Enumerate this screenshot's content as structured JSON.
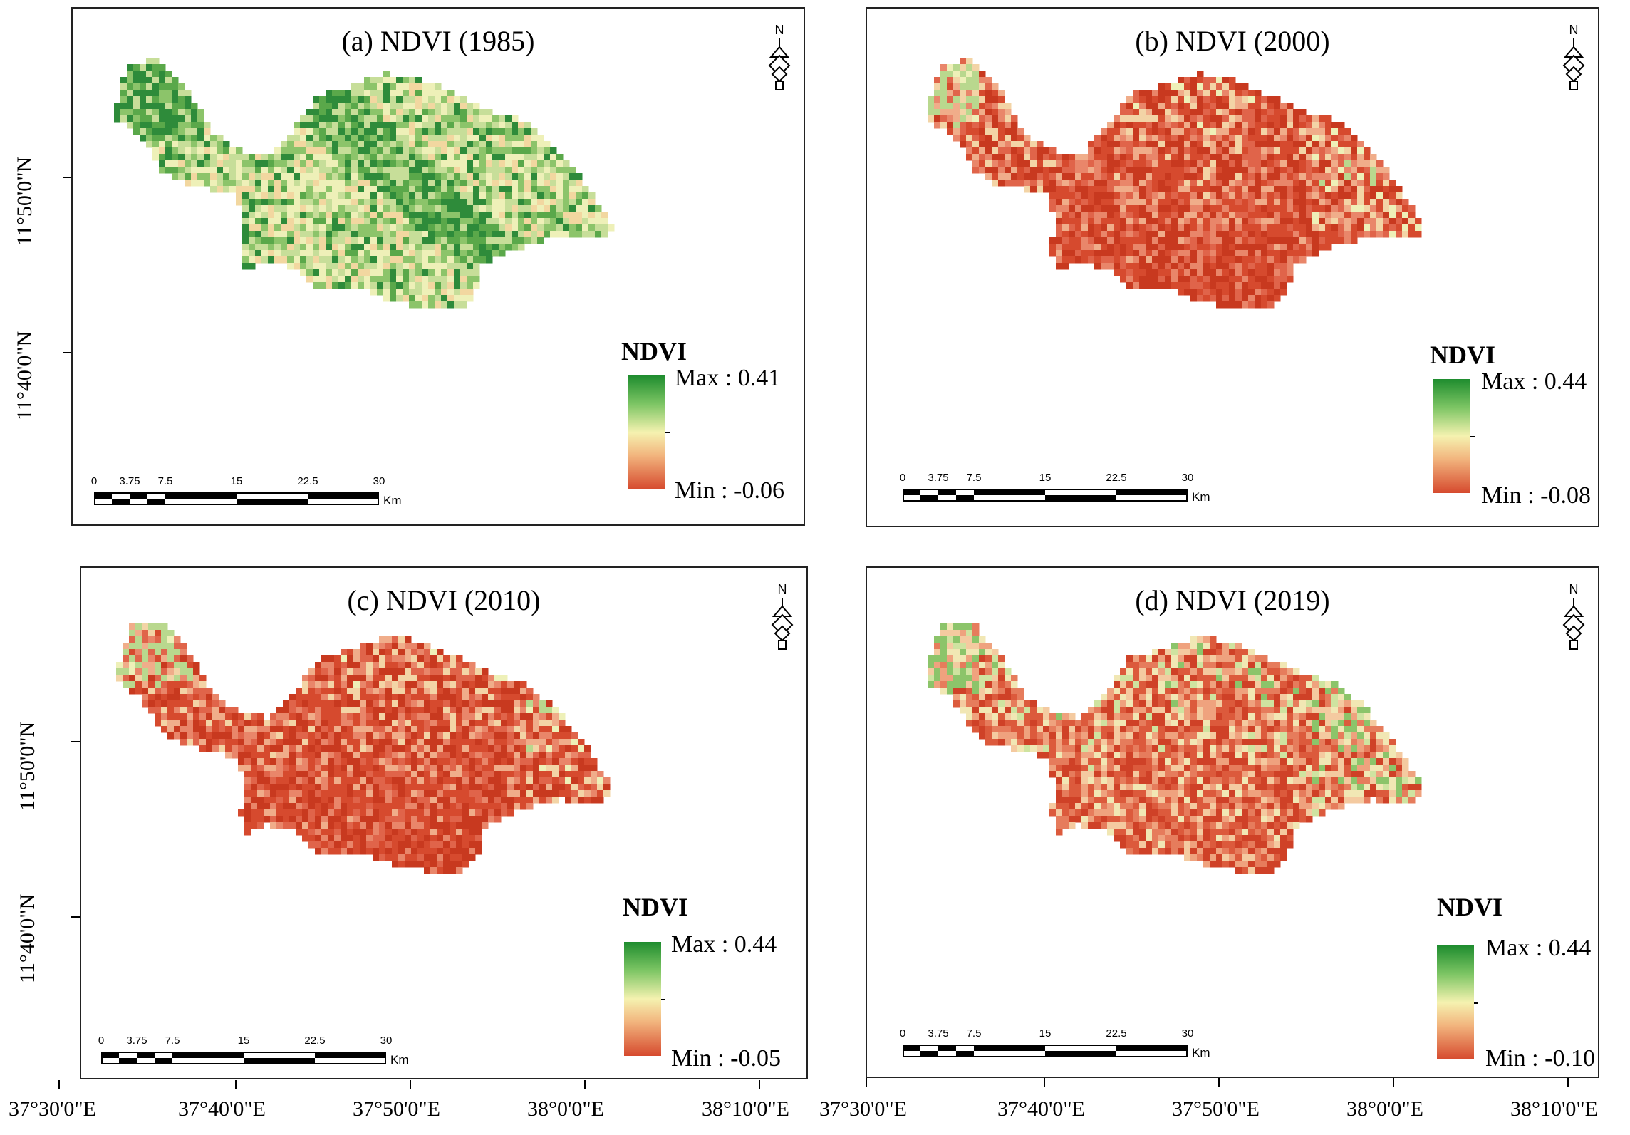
{
  "figure": {
    "panels": [
      {
        "title": "(a) NDVI (1985)",
        "legend_title": "NDVI",
        "max_label": "Max : 0.41",
        "min_label": "Min : -0.06",
        "max": 0.41,
        "min": -0.06,
        "dominant": "green"
      },
      {
        "title": "(b) NDVI (2000)",
        "legend_title": "NDVI",
        "max_label": "Max : 0.44",
        "min_label": "Min : -0.08",
        "max": 0.44,
        "min": -0.08,
        "dominant": "red"
      },
      {
        "title": "(c) NDVI (2010)",
        "legend_title": "NDVI",
        "max_label": "Max : 0.44",
        "min_label": "Min : -0.05",
        "max": 0.44,
        "min": -0.05,
        "dominant": "red"
      },
      {
        "title": "(d) NDVI (2019)",
        "legend_title": "NDVI",
        "max_label": "Max : 0.44",
        "min_label": "Min : -0.10",
        "max": 0.44,
        "min": -0.1,
        "dominant": "mixed"
      }
    ],
    "scale_bar": {
      "labels": [
        "0",
        "3.75",
        "7.5",
        "15",
        "22.5",
        "30"
      ],
      "unit": "Km"
    },
    "north_arrow": "N",
    "lat_labels": [
      "11°50'0\"N",
      "11°40'0\"N"
    ],
    "lon_labels_left": [
      "37°30'0\"E",
      "37°40'0\"E",
      "37°50'0\"E",
      "38°0'0\"E",
      "38°10'0\"E"
    ],
    "lon_labels_right": [
      "37°30'0\"E",
      "37°40'0\"E",
      "37°50'0\"E",
      "38°0'0\"E",
      "38°10'0\"E"
    ],
    "colors": {
      "high": "#1e8c2e",
      "mid": "#f5f2b0",
      "low": "#d64a2e"
    }
  }
}
